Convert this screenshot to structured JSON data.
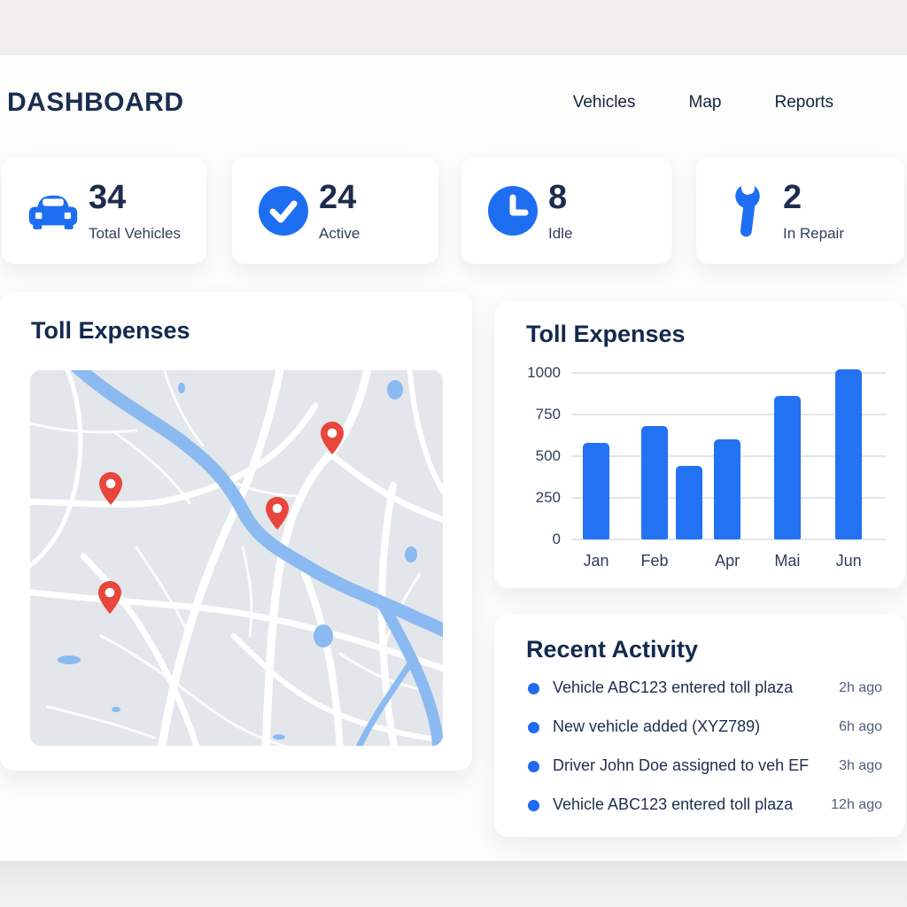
{
  "header": {
    "title": "DASHBOARD",
    "nav": [
      {
        "label": "Vehicles"
      },
      {
        "label": "Map"
      },
      {
        "label": "Reports"
      }
    ]
  },
  "stats": [
    {
      "icon": "car-icon",
      "value": "34",
      "label": "Total Vehicles"
    },
    {
      "icon": "check-circle-icon",
      "value": "24",
      "label": "Active"
    },
    {
      "icon": "clock-icon",
      "value": "8",
      "label": "Idle"
    },
    {
      "icon": "wrench-icon",
      "value": "2",
      "label": "In Repair"
    }
  ],
  "map_panel": {
    "title": "Toll Expenses",
    "pin_count": 4
  },
  "chart_panel": {
    "title": "Toll Expenses"
  },
  "chart_data": {
    "type": "bar",
    "title": "Toll Expenses",
    "categories": [
      "Jan",
      "Feb",
      "",
      "Apr",
      "Mai",
      "Jun"
    ],
    "values": [
      580,
      680,
      440,
      600,
      860,
      1020
    ],
    "xlabel": "",
    "ylabel": "",
    "ylim": [
      0,
      1000
    ],
    "yticks": [
      0,
      250,
      500,
      750,
      1000
    ],
    "grid": true,
    "legend": false,
    "bar_color": "#2272f3",
    "bar_centers_frac": [
      0.079,
      0.265,
      0.375,
      0.496,
      0.687,
      0.882
    ]
  },
  "activity": {
    "title": "Recent Activity",
    "items": [
      {
        "text": "Vehicle ABC123 entered toll plaza",
        "time": "2h ago"
      },
      {
        "text": "New vehicle added (XYZ789)",
        "time": "6h ago"
      },
      {
        "text": "Driver John Doe assigned to veh EF",
        "time": "3h ago"
      },
      {
        "text": "Vehicle ABC123 entered toll plaza",
        "time": "12h ago"
      }
    ]
  },
  "colors": {
    "accent_blue": "#2272f3",
    "icon_blue": "#1e6ef2",
    "navy_text": "#1b2d52",
    "pin_red": "#e8463c",
    "river_blue": "#8abaf1",
    "map_bg": "#e3e6ea"
  }
}
